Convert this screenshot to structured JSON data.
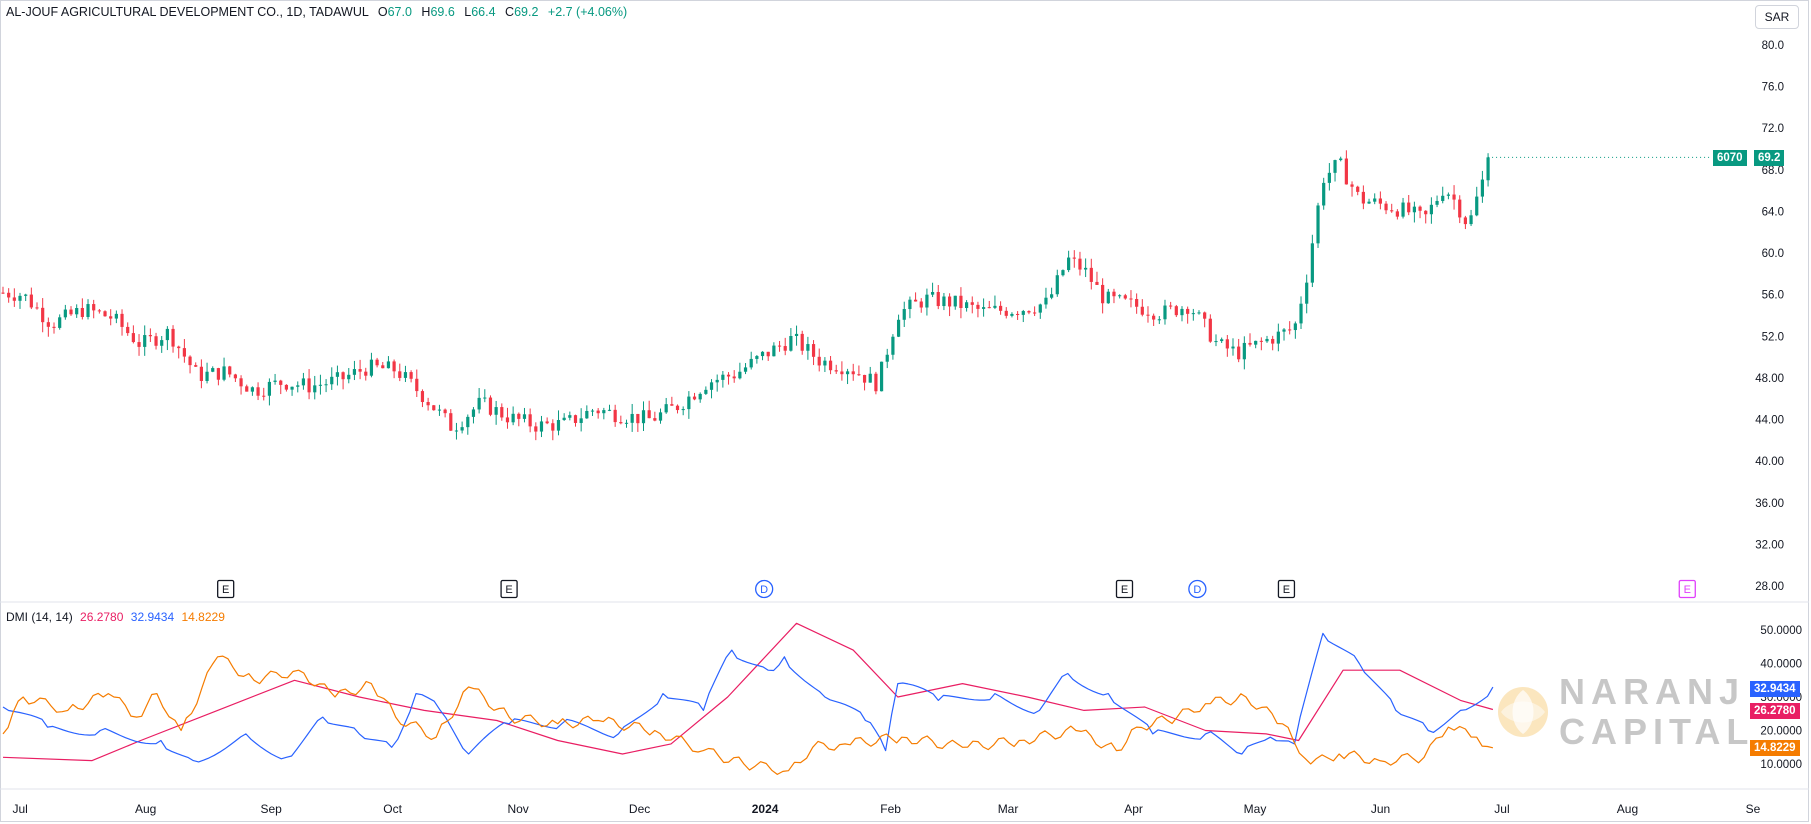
{
  "header": {
    "symbol": "AL-JOUF AGRICULTURAL DEVELOPMENT CO.",
    "interval_exchange": "1D, TADAWUL",
    "open_label": "O",
    "open": "67.0",
    "high_label": "H",
    "high": "69.6",
    "low_label": "L",
    "low": "66.4",
    "close_label": "C",
    "close": "69.2",
    "change": "+2.7 (+4.06%)"
  },
  "currency": "SAR",
  "price_badge": {
    "ticker": "6070",
    "price": "69.2"
  },
  "dmi_legend": {
    "name": "DMI (14, 14)",
    "adx": "26.2780",
    "plus_di": "32.9434",
    "minus_di": "14.8229"
  },
  "dmi_badges": {
    "plus_di": "32.9434",
    "adx": "26.2780",
    "minus_di": "14.8229"
  },
  "watermark": {
    "line1": "NARANJ",
    "line2": "CAPITAL"
  },
  "colors": {
    "up": "#089981",
    "down": "#f23645",
    "adx": "#e91e63",
    "plus_di": "#2962ff",
    "minus_di": "#f57c00",
    "earnings_marker": "#131722",
    "dividend_marker": "#2962ff",
    "upcoming_marker": "#e040fb"
  },
  "icons": {
    "earnings": "E",
    "dividend": "D"
  },
  "chart_data": [
    {
      "type": "candlestick",
      "title": "AL-JOUF AGRICULTURAL DEVELOPMENT CO., 1D, TADAWUL",
      "y_axis_ticks": [
        "80.0",
        "76.0",
        "72.0",
        "68.0",
        "64.0",
        "60.0",
        "56.0",
        "52.0",
        "48.00",
        "44.00",
        "40.00",
        "36.00",
        "32.00",
        "28.00"
      ],
      "x_axis_labels": [
        "Jul",
        "Aug",
        "Sep",
        "Oct",
        "Nov",
        "Dec",
        "2024",
        "Feb",
        "Mar",
        "Apr",
        "May",
        "Jun",
        "Jul",
        "Aug",
        "Se"
      ],
      "ylim": [
        27,
        83
      ],
      "last_close": 69.2,
      "close_path": [
        {
          "date": "2023-06-28",
          "close": 56.2
        },
        {
          "date": "2023-07-03",
          "close": 56.0
        },
        {
          "date": "2023-07-10",
          "close": 53.2
        },
        {
          "date": "2023-07-18",
          "close": 54.6
        },
        {
          "date": "2023-07-25",
          "close": 53.8
        },
        {
          "date": "2023-08-01",
          "close": 51.2
        },
        {
          "date": "2023-08-08",
          "close": 52.4
        },
        {
          "date": "2023-08-15",
          "close": 48.2
        },
        {
          "date": "2023-08-22",
          "close": 48.6
        },
        {
          "date": "2023-08-29",
          "close": 46.8
        },
        {
          "date": "2023-09-05",
          "close": 47.6
        },
        {
          "date": "2023-09-12",
          "close": 47.2
        },
        {
          "date": "2023-09-19",
          "close": 47.8
        },
        {
          "date": "2023-09-26",
          "close": 49.0
        },
        {
          "date": "2023-10-03",
          "close": 48.8
        },
        {
          "date": "2023-10-10",
          "close": 46.2
        },
        {
          "date": "2023-10-17",
          "close": 43.2
        },
        {
          "date": "2023-10-24",
          "close": 45.6
        },
        {
          "date": "2023-10-31",
          "close": 44.2
        },
        {
          "date": "2023-11-07",
          "close": 43.4
        },
        {
          "date": "2023-11-14",
          "close": 43.6
        },
        {
          "date": "2023-11-21",
          "close": 45.0
        },
        {
          "date": "2023-11-28",
          "close": 44.4
        },
        {
          "date": "2023-12-05",
          "close": 44.0
        },
        {
          "date": "2023-12-12",
          "close": 45.4
        },
        {
          "date": "2023-12-19",
          "close": 47.6
        },
        {
          "date": "2023-12-26",
          "close": 48.4
        },
        {
          "date": "2024-01-02",
          "close": 50.2
        },
        {
          "date": "2024-01-09",
          "close": 51.8
        },
        {
          "date": "2024-01-16",
          "close": 49.6
        },
        {
          "date": "2024-01-23",
          "close": 49.0
        },
        {
          "date": "2024-01-30",
          "close": 47.4
        },
        {
          "date": "2024-02-04",
          "close": 54.2
        },
        {
          "date": "2024-02-11",
          "close": 55.6
        },
        {
          "date": "2024-02-18",
          "close": 55.2
        },
        {
          "date": "2024-02-25",
          "close": 54.4
        },
        {
          "date": "2024-03-05",
          "close": 54.6
        },
        {
          "date": "2024-03-12",
          "close": 55.2
        },
        {
          "date": "2024-03-17",
          "close": 59.4
        },
        {
          "date": "2024-03-21",
          "close": 58.4
        },
        {
          "date": "2024-03-26",
          "close": 55.6
        },
        {
          "date": "2024-04-02",
          "close": 55.0
        },
        {
          "date": "2024-04-09",
          "close": 54.2
        },
        {
          "date": "2024-04-16",
          "close": 55.0
        },
        {
          "date": "2024-04-23",
          "close": 51.2
        },
        {
          "date": "2024-04-28",
          "close": 50.4
        },
        {
          "date": "2024-05-05",
          "close": 51.6
        },
        {
          "date": "2024-05-12",
          "close": 52.8
        },
        {
          "date": "2024-05-15",
          "close": 57.8
        },
        {
          "date": "2024-05-19",
          "close": 67.2
        },
        {
          "date": "2024-05-23",
          "close": 68.6
        },
        {
          "date": "2024-05-28",
          "close": 65.2
        },
        {
          "date": "2024-06-03",
          "close": 64.6
        },
        {
          "date": "2024-06-09",
          "close": 64.0
        },
        {
          "date": "2024-06-13",
          "close": 63.2
        },
        {
          "date": "2024-06-18",
          "close": 66.4
        },
        {
          "date": "2024-06-21",
          "close": 64.8
        },
        {
          "date": "2024-06-24",
          "close": 62.6
        },
        {
          "date": "2024-06-27",
          "close": 66.5
        },
        {
          "date": "2024-06-30",
          "close": 69.2
        }
      ],
      "event_markers": [
        {
          "type": "earnings",
          "date": "2023-08-22"
        },
        {
          "type": "earnings",
          "date": "2023-10-31"
        },
        {
          "type": "dividend",
          "date": "2024-01-02"
        },
        {
          "type": "earnings",
          "date": "2024-03-31"
        },
        {
          "type": "dividend",
          "date": "2024-04-18"
        },
        {
          "type": "earnings",
          "date": "2024-05-10"
        },
        {
          "type": "earnings_upcoming",
          "date": "2024-08-17"
        }
      ]
    },
    {
      "type": "line",
      "title": "DMI (14, 14)",
      "y_axis_ticks": [
        "50.0000",
        "40.0000",
        "30.0000",
        "20.0000",
        "10.0000"
      ],
      "ylim": [
        5,
        57
      ],
      "series": [
        {
          "name": "ADX",
          "last": 26.278,
          "points": [
            {
              "date": "2023-06-28",
              "value": 12
            },
            {
              "date": "2023-07-20",
              "value": 11
            },
            {
              "date": "2023-08-01",
              "value": 17
            },
            {
              "date": "2023-08-20",
              "value": 26
            },
            {
              "date": "2023-09-08",
              "value": 35
            },
            {
              "date": "2023-09-24",
              "value": 30
            },
            {
              "date": "2023-10-10",
              "value": 26
            },
            {
              "date": "2023-10-28",
              "value": 23
            },
            {
              "date": "2023-11-12",
              "value": 17
            },
            {
              "date": "2023-11-28",
              "value": 13
            },
            {
              "date": "2023-12-10",
              "value": 16
            },
            {
              "date": "2023-12-24",
              "value": 30
            },
            {
              "date": "2024-01-10",
              "value": 52
            },
            {
              "date": "2024-01-24",
              "value": 44
            },
            {
              "date": "2024-02-04",
              "value": 30
            },
            {
              "date": "2024-02-20",
              "value": 34
            },
            {
              "date": "2024-03-07",
              "value": 30
            },
            {
              "date": "2024-03-21",
              "value": 26
            },
            {
              "date": "2024-04-05",
              "value": 27
            },
            {
              "date": "2024-04-20",
              "value": 20
            },
            {
              "date": "2024-05-05",
              "value": 19
            },
            {
              "date": "2024-05-13",
              "value": 17
            },
            {
              "date": "2024-05-24",
              "value": 38
            },
            {
              "date": "2024-06-07",
              "value": 38
            },
            {
              "date": "2024-06-22",
              "value": 29
            },
            {
              "date": "2024-06-30",
              "value": 26.278
            }
          ]
        },
        {
          "name": "+DI",
          "last": 32.9434,
          "points": [
            {
              "date": "2023-06-28",
              "value": 27
            },
            {
              "date": "2023-07-09",
              "value": 21
            },
            {
              "date": "2023-07-22",
              "value": 20
            },
            {
              "date": "2023-08-06",
              "value": 17
            },
            {
              "date": "2023-08-14",
              "value": 11
            },
            {
              "date": "2023-08-27",
              "value": 19
            },
            {
              "date": "2023-09-06",
              "value": 12
            },
            {
              "date": "2023-09-15",
              "value": 24
            },
            {
              "date": "2023-09-24",
              "value": 19
            },
            {
              "date": "2023-10-02",
              "value": 15
            },
            {
              "date": "2023-10-08",
              "value": 31
            },
            {
              "date": "2023-10-14",
              "value": 26
            },
            {
              "date": "2023-10-21",
              "value": 13
            },
            {
              "date": "2023-10-31",
              "value": 22
            },
            {
              "date": "2023-11-13",
              "value": 22
            },
            {
              "date": "2023-11-27",
              "value": 19
            },
            {
              "date": "2023-12-08",
              "value": 31
            },
            {
              "date": "2023-12-18",
              "value": 26
            },
            {
              "date": "2023-12-25",
              "value": 44
            },
            {
              "date": "2024-01-03",
              "value": 38
            },
            {
              "date": "2024-01-07",
              "value": 42
            },
            {
              "date": "2024-01-17",
              "value": 30
            },
            {
              "date": "2024-01-27",
              "value": 23
            },
            {
              "date": "2024-02-01",
              "value": 14
            },
            {
              "date": "2024-02-04",
              "value": 34
            },
            {
              "date": "2024-02-14",
              "value": 29
            },
            {
              "date": "2024-02-28",
              "value": 31
            },
            {
              "date": "2024-03-10",
              "value": 26
            },
            {
              "date": "2024-03-17",
              "value": 37
            },
            {
              "date": "2024-03-27",
              "value": 31
            },
            {
              "date": "2024-04-07",
              "value": 19
            },
            {
              "date": "2024-04-20",
              "value": 19
            },
            {
              "date": "2024-04-29",
              "value": 13
            },
            {
              "date": "2024-05-06",
              "value": 18
            },
            {
              "date": "2024-05-12",
              "value": 16
            },
            {
              "date": "2024-05-19",
              "value": 49
            },
            {
              "date": "2024-05-28",
              "value": 40
            },
            {
              "date": "2024-06-06",
              "value": 26
            },
            {
              "date": "2024-06-14",
              "value": 20
            },
            {
              "date": "2024-06-22",
              "value": 26
            },
            {
              "date": "2024-06-30",
              "value": 32.9434
            }
          ]
        },
        {
          "name": "-DI",
          "last": 14.8229,
          "points": [
            {
              "date": "2023-06-28",
              "value": 19
            },
            {
              "date": "2023-07-03",
              "value": 30
            },
            {
              "date": "2023-07-14",
              "value": 26
            },
            {
              "date": "2023-07-24",
              "value": 31
            },
            {
              "date": "2023-07-31",
              "value": 24
            },
            {
              "date": "2023-08-05",
              "value": 31
            },
            {
              "date": "2023-08-11",
              "value": 20
            },
            {
              "date": "2023-08-20",
              "value": 42
            },
            {
              "date": "2023-08-29",
              "value": 35
            },
            {
              "date": "2023-09-09",
              "value": 38
            },
            {
              "date": "2023-09-18",
              "value": 30
            },
            {
              "date": "2023-09-27",
              "value": 34
            },
            {
              "date": "2023-10-03",
              "value": 24
            },
            {
              "date": "2023-10-13",
              "value": 18
            },
            {
              "date": "2023-10-21",
              "value": 33
            },
            {
              "date": "2023-10-31",
              "value": 24
            },
            {
              "date": "2023-11-12",
              "value": 22
            },
            {
              "date": "2023-11-22",
              "value": 23
            },
            {
              "date": "2023-12-06",
              "value": 20
            },
            {
              "date": "2023-12-18",
              "value": 14
            },
            {
              "date": "2023-12-28",
              "value": 10
            },
            {
              "date": "2024-01-08",
              "value": 8
            },
            {
              "date": "2024-01-14",
              "value": 15
            },
            {
              "date": "2024-01-22",
              "value": 16
            },
            {
              "date": "2024-02-05",
              "value": 18
            },
            {
              "date": "2024-02-20",
              "value": 15
            },
            {
              "date": "2024-03-05",
              "value": 17
            },
            {
              "date": "2024-03-19",
              "value": 20
            },
            {
              "date": "2024-03-29",
              "value": 14
            },
            {
              "date": "2024-04-03",
              "value": 21
            },
            {
              "date": "2024-04-13",
              "value": 24
            },
            {
              "date": "2024-04-20",
              "value": 28
            },
            {
              "date": "2024-04-30",
              "value": 30
            },
            {
              "date": "2024-05-09",
              "value": 22
            },
            {
              "date": "2024-05-16",
              "value": 10
            },
            {
              "date": "2024-05-23",
              "value": 13
            },
            {
              "date": "2024-06-02",
              "value": 11
            },
            {
              "date": "2024-06-13",
              "value": 12
            },
            {
              "date": "2024-06-19",
              "value": 21
            },
            {
              "date": "2024-06-26",
              "value": 18
            },
            {
              "date": "2024-06-30",
              "value": 14.8229
            }
          ]
        }
      ]
    }
  ]
}
